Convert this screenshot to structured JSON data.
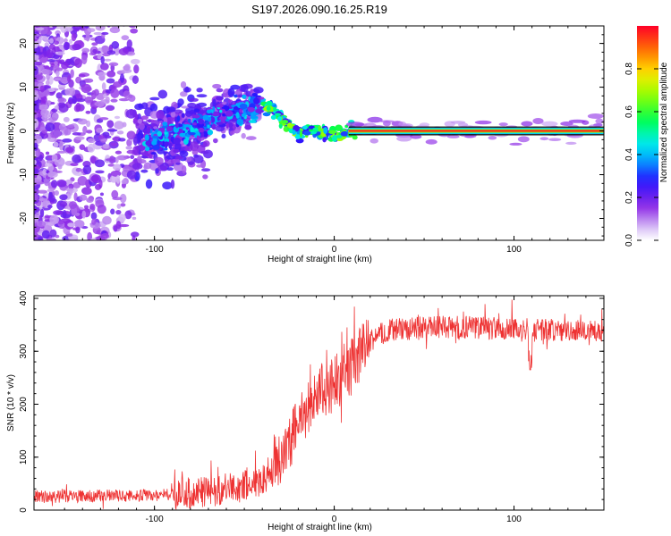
{
  "title": "S197.2026.090.16.25.R19",
  "chart_data": [
    {
      "type": "heatmap",
      "xlabel": "Height of straight line (km)",
      "ylabel": "Frequency (Hz)",
      "xlim": [
        -167,
        150
      ],
      "ylim": [
        -25,
        24
      ],
      "xticks": [
        -100,
        0,
        100
      ],
      "xtick_labels": [
        "-100",
        "0",
        "100"
      ],
      "yticks": [
        -20,
        -10,
        0,
        10,
        20
      ],
      "ytick_labels": [
        "-20",
        "-10",
        "0",
        "10",
        "20"
      ],
      "ridge": {
        "x": [
          -100,
          -90,
          -80,
          -70,
          -60,
          -50,
          -40,
          -35,
          -30,
          -25,
          -20,
          -15,
          -10,
          -5,
          0,
          5,
          10,
          150
        ],
        "y": [
          -2,
          -1,
          0,
          2,
          4,
          5,
          6,
          5,
          3,
          1,
          -1,
          0,
          0.5,
          -0.5,
          -1,
          -0.5,
          0,
          0
        ]
      },
      "tone": {
        "x_start": 8,
        "x_end": 150,
        "y": 0
      },
      "colorbar": {
        "label": "Normalized spectral amplitude",
        "range": [
          0,
          1
        ],
        "ticks": [
          0.0,
          0.2,
          0.4,
          0.6,
          0.8
        ],
        "tick_labels": [
          "0.0",
          "0.2",
          "0.4",
          "0.6",
          "0.8"
        ]
      }
    },
    {
      "type": "line",
      "xlabel": "Height of straight line (km)",
      "ylabel": "SNR (10 * v/v)",
      "xlim": [
        -167,
        150
      ],
      "ylim": [
        0,
        405
      ],
      "xticks": [
        -100,
        0,
        100
      ],
      "xtick_labels": [
        "-100",
        "0",
        "100"
      ],
      "yticks": [
        0,
        100,
        200,
        300,
        400
      ],
      "ytick_labels": [
        "0",
        "100",
        "200",
        "300",
        "400"
      ],
      "color": "#ee3333",
      "trend": {
        "x": [
          -167,
          -100,
          -70,
          -50,
          -40,
          -30,
          -20,
          -10,
          0,
          10,
          20,
          25,
          30,
          50,
          80,
          110,
          150
        ],
        "y": [
          25,
          28,
          35,
          45,
          55,
          100,
          160,
          220,
          240,
          270,
          320,
          330,
          340,
          345,
          345,
          340,
          340
        ]
      }
    }
  ]
}
